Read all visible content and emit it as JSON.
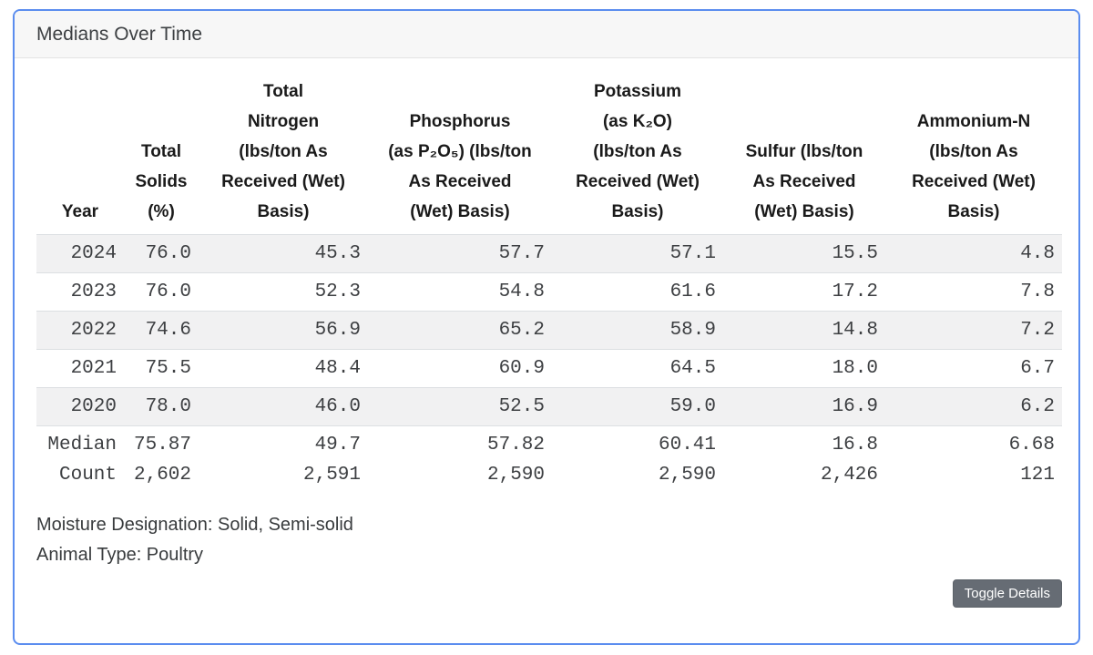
{
  "card": {
    "title": "Medians Over Time"
  },
  "theme": {
    "accent_border": "#5b8def",
    "stripe": "#f1f1f2",
    "row_line": "#dcdfe2",
    "button_gray": "#666c74",
    "header_bg": "#f7f7f7"
  },
  "table": {
    "header": {
      "col_lines": [
        [
          "Year"
        ],
        [
          "Total",
          "Solids",
          "(%)"
        ],
        [
          "Total",
          "Nitrogen",
          "(lbs/ton As",
          "Received (Wet)",
          "Basis)"
        ],
        [
          "Phosphorus",
          "(as P₂O₅) (lbs/ton",
          "As Received",
          "(Wet) Basis)"
        ],
        [
          "Potassium",
          "(as K₂O)",
          "(lbs/ton As",
          "Received (Wet)",
          "Basis)"
        ],
        [
          "Sulfur (lbs/ton",
          "As Received",
          "(Wet) Basis)"
        ],
        [
          "Ammonium-N",
          "(lbs/ton As",
          "Received (Wet)",
          "Basis)"
        ]
      ]
    },
    "rows": [
      [
        "2024",
        "76.0",
        "45.3",
        "57.7",
        "57.1",
        "15.5",
        "4.8"
      ],
      [
        "2023",
        "76.0",
        "52.3",
        "54.8",
        "61.6",
        "17.2",
        "7.8"
      ],
      [
        "2022",
        "74.6",
        "56.9",
        "65.2",
        "58.9",
        "14.8",
        "7.2"
      ],
      [
        "2021",
        "75.5",
        "48.4",
        "60.9",
        "64.5",
        "18.0",
        "6.7"
      ],
      [
        "2020",
        "78.0",
        "46.0",
        "52.5",
        "59.0",
        "16.9",
        "6.2"
      ]
    ],
    "summary_rows": [
      [
        "Median",
        "75.87",
        "49.7",
        "57.82",
        "60.41",
        "16.8",
        "6.68"
      ],
      [
        "Count",
        "2,602",
        "2,591",
        "2,590",
        "2,590",
        "2,426",
        "121"
      ]
    ]
  },
  "footer": {
    "moisture_designation": "Moisture Designation: Solid, Semi-solid",
    "animal_type": "Animal Type: Poultry",
    "toggle_button_label": "Toggle Details"
  }
}
